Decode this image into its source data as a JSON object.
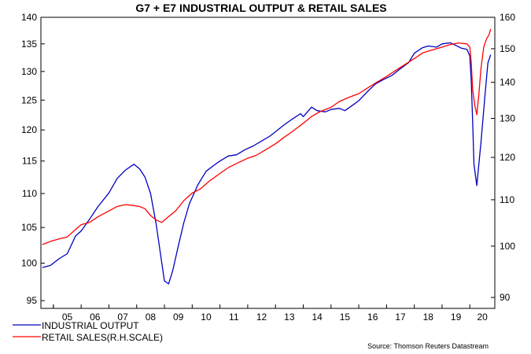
{
  "chart_data": {
    "type": "line",
    "title": "G7 + E7 INDUSTRIAL OUTPUT & RETAIL SALES",
    "source": "Source: Thomson Reuters Datastream",
    "xlim": [
      2004.55,
      2020.9
    ],
    "x_ticks": [
      "05",
      "06",
      "07",
      "08",
      "09",
      "10",
      "11",
      "12",
      "13",
      "14",
      "15",
      "16",
      "17",
      "18",
      "19",
      "20"
    ],
    "left_axis": {
      "ylim": [
        94,
        140
      ],
      "ticks": [
        95,
        100,
        105,
        110,
        115,
        120,
        125,
        130,
        135,
        140
      ],
      "scale": "log"
    },
    "right_axis": {
      "ylim": [
        88,
        160
      ],
      "ticks": [
        90,
        100,
        110,
        120,
        130,
        140,
        150,
        160
      ],
      "scale": "log"
    },
    "legend": {
      "placement": "bottom-left"
    },
    "series": [
      {
        "name": "INDUSTRIAL OUTPUT",
        "axis": "left",
        "color": "#0000c0",
        "x": [
          2004.6,
          2004.9,
          2005.2,
          2005.5,
          2005.8,
          2006.0,
          2006.3,
          2006.6,
          2007.0,
          2007.3,
          2007.6,
          2007.9,
          2008.1,
          2008.3,
          2008.5,
          2008.7,
          2008.85,
          2009.0,
          2009.15,
          2009.3,
          2009.5,
          2009.7,
          2009.9,
          2010.2,
          2010.5,
          2010.8,
          2011.0,
          2011.3,
          2011.6,
          2011.9,
          2012.2,
          2012.5,
          2012.8,
          2013.0,
          2013.3,
          2013.6,
          2013.9,
          2014.0,
          2014.3,
          2014.5,
          2014.8,
          2015.0,
          2015.3,
          2015.5,
          2015.8,
          2016.0,
          2016.3,
          2016.6,
          2016.9,
          2017.2,
          2017.5,
          2017.8,
          2018.0,
          2018.3,
          2018.5,
          2018.8,
          2019.0,
          2019.3,
          2019.5,
          2019.7,
          2019.9,
          2020.0,
          2020.05,
          2020.1,
          2020.15,
          2020.25,
          2020.4,
          2020.55,
          2020.65,
          2020.75
        ],
        "values": [
          99.4,
          99.7,
          100.6,
          101.3,
          103.8,
          104.5,
          106.2,
          108.0,
          110.1,
          112.3,
          113.6,
          114.5,
          113.8,
          112.5,
          110.0,
          105.5,
          101.5,
          97.6,
          97.2,
          99.0,
          102.4,
          105.7,
          108.5,
          111.3,
          113.4,
          114.4,
          115.0,
          115.8,
          116.0,
          116.8,
          117.4,
          118.2,
          119.0,
          119.7,
          120.8,
          121.8,
          122.7,
          122.2,
          123.8,
          123.2,
          123.0,
          123.4,
          123.6,
          123.2,
          124.2,
          124.9,
          126.4,
          127.8,
          128.6,
          129.3,
          130.5,
          131.6,
          133.3,
          134.3,
          134.6,
          134.4,
          135.0,
          135.2,
          134.7,
          134.2,
          134.0,
          132.8,
          128.5,
          121.5,
          114.5,
          111.2,
          118.0,
          126.0,
          131.5,
          133.0
        ]
      },
      {
        "name": "RETAIL SALES(R.H.SCALE)",
        "axis": "right",
        "color": "#ff0000",
        "x": [
          2004.6,
          2004.9,
          2005.2,
          2005.5,
          2005.8,
          2006.0,
          2006.3,
          2006.6,
          2007.0,
          2007.3,
          2007.6,
          2007.9,
          2008.1,
          2008.3,
          2008.5,
          2008.7,
          2008.9,
          2009.1,
          2009.4,
          2009.7,
          2010.0,
          2010.3,
          2010.6,
          2011.0,
          2011.3,
          2011.6,
          2012.0,
          2012.3,
          2012.6,
          2013.0,
          2013.3,
          2013.6,
          2014.0,
          2014.3,
          2014.6,
          2015.0,
          2015.3,
          2015.6,
          2016.0,
          2016.3,
          2016.6,
          2017.0,
          2017.3,
          2017.6,
          2018.0,
          2018.3,
          2018.6,
          2019.0,
          2019.3,
          2019.6,
          2019.9,
          2020.0,
          2020.05,
          2020.1,
          2020.18,
          2020.25,
          2020.32,
          2020.4,
          2020.5,
          2020.6,
          2020.7,
          2020.75
        ],
        "values": [
          100.3,
          101.0,
          101.5,
          101.9,
          103.5,
          104.5,
          105.0,
          106.2,
          107.5,
          108.5,
          108.9,
          108.7,
          108.5,
          108.0,
          106.5,
          105.5,
          105.0,
          106.0,
          107.5,
          109.8,
          111.5,
          112.5,
          114.2,
          116.1,
          117.5,
          118.5,
          119.8,
          120.5,
          121.7,
          123.4,
          125.0,
          126.5,
          128.7,
          130.5,
          131.8,
          133.0,
          134.6,
          135.6,
          136.8,
          138.3,
          139.8,
          141.7,
          143.3,
          144.9,
          147.0,
          148.7,
          149.5,
          150.5,
          151.3,
          151.8,
          151.5,
          150.5,
          146.0,
          138.0,
          133.5,
          131.0,
          136.0,
          144.0,
          150.5,
          153.0,
          154.5,
          156.2
        ]
      }
    ]
  }
}
